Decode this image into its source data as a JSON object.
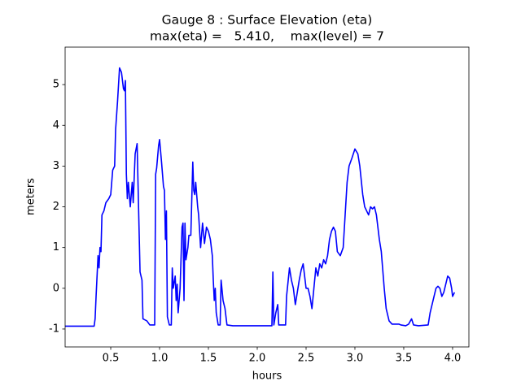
{
  "chart_data": {
    "type": "line",
    "title": "Gauge 8 : Surface Elevation (eta)",
    "subtitle": "max(eta) =   5.410,    max(level) = 7",
    "xlabel": "hours",
    "ylabel": "meters",
    "color": "#0000ff",
    "xlim": [
      0.033,
      4.167
    ],
    "ylim": [
      -1.44,
      5.92
    ],
    "xticks": [
      0.5,
      {
        "value": 1,
        "label": "1.0"
      },
      1.5,
      {
        "value": 2,
        "label": "2.0"
      },
      2.5,
      {
        "value": 3,
        "label": "3.0"
      },
      3.5,
      {
        "value": 4,
        "label": "4.0"
      }
    ],
    "yticks": [
      -1,
      0,
      1,
      2,
      3,
      4,
      5
    ],
    "grid": false,
    "x": [
      0.033,
      0.33,
      0.34,
      0.35,
      0.37,
      0.38,
      0.39,
      0.4,
      0.41,
      0.43,
      0.45,
      0.48,
      0.5,
      0.52,
      0.54,
      0.55,
      0.57,
      0.59,
      0.61,
      0.63,
      0.64,
      0.65,
      0.66,
      0.67,
      0.68,
      0.7,
      0.72,
      0.73,
      0.75,
      0.77,
      0.78,
      0.8,
      0.82,
      0.83,
      0.87,
      0.9,
      0.95,
      0.96,
      0.97,
      0.99,
      1.0,
      1.02,
      1.04,
      1.05,
      1.06,
      1.07,
      1.08,
      1.1,
      1.12,
      1.13,
      1.14,
      1.16,
      1.17,
      1.18,
      1.19,
      1.21,
      1.23,
      1.24,
      1.25,
      1.26,
      1.27,
      1.29,
      1.3,
      1.32,
      1.34,
      1.35,
      1.36,
      1.37,
      1.39,
      1.4,
      1.42,
      1.44,
      1.46,
      1.48,
      1.5,
      1.52,
      1.54,
      1.55,
      1.56,
      1.57,
      1.58,
      1.6,
      1.62,
      1.63,
      1.65,
      1.67,
      1.69,
      1.75,
      1.9,
      2.15,
      2.16,
      2.17,
      2.19,
      2.21,
      2.22,
      2.29,
      2.3,
      2.33,
      2.35,
      2.37,
      2.39,
      2.41,
      2.43,
      2.45,
      2.47,
      2.49,
      2.5,
      2.52,
      2.54,
      2.56,
      2.58,
      2.6,
      2.62,
      2.64,
      2.66,
      2.68,
      2.7,
      2.72,
      2.74,
      2.76,
      2.78,
      2.8,
      2.82,
      2.85,
      2.88,
      2.9,
      2.92,
      2.94,
      2.97,
      3.0,
      3.03,
      3.05,
      3.08,
      3.1,
      3.12,
      3.14,
      3.16,
      3.18,
      3.2,
      3.22,
      3.25,
      3.27,
      3.3,
      3.32,
      3.35,
      3.38,
      3.45,
      3.47,
      3.52,
      3.55,
      3.58,
      3.6,
      3.65,
      3.75,
      3.77,
      3.8,
      3.83,
      3.85,
      3.87,
      3.89,
      3.91,
      3.93,
      3.95,
      3.97,
      3.99,
      4.0,
      4.01,
      4.02
    ],
    "values": [
      -0.93,
      -0.93,
      -0.75,
      -0.2,
      0.8,
      0.5,
      1.0,
      0.9,
      1.8,
      1.9,
      2.1,
      2.2,
      2.3,
      2.9,
      3.0,
      3.9,
      4.6,
      5.41,
      5.3,
      4.9,
      4.85,
      5.1,
      2.8,
      2.2,
      2.6,
      2.0,
      2.6,
      2.1,
      3.3,
      3.55,
      2.5,
      0.4,
      0.2,
      -0.75,
      -0.8,
      -0.9,
      -0.9,
      2.8,
      2.95,
      3.5,
      3.65,
      3.1,
      2.5,
      2.4,
      1.2,
      1.9,
      -0.7,
      -0.9,
      -0.9,
      0.5,
      0.0,
      0.3,
      -0.3,
      0.1,
      -0.6,
      0.0,
      1.5,
      1.6,
      -0.3,
      1.6,
      0.7,
      1.0,
      1.3,
      1.3,
      3.1,
      2.4,
      2.3,
      2.6,
      2.0,
      1.8,
      1.0,
      1.6,
      1.1,
      1.5,
      1.4,
      1.2,
      0.8,
      0.2,
      -0.3,
      0.0,
      -0.6,
      -0.9,
      -0.9,
      0.2,
      -0.3,
      -0.5,
      -0.9,
      -0.92,
      -0.92,
      -0.92,
      0.4,
      -0.9,
      -0.6,
      -0.4,
      -0.9,
      -0.9,
      -0.2,
      0.5,
      0.2,
      0.0,
      -0.4,
      -0.1,
      0.2,
      0.45,
      0.6,
      0.2,
      0.0,
      0.0,
      -0.2,
      -0.5,
      0.0,
      0.5,
      0.3,
      0.6,
      0.5,
      0.7,
      0.6,
      0.8,
      1.2,
      1.4,
      1.5,
      1.4,
      0.9,
      0.8,
      1.0,
      1.8,
      2.6,
      3.0,
      3.2,
      3.42,
      3.3,
      3.0,
      2.3,
      2.0,
      1.9,
      1.8,
      2.0,
      1.95,
      2.0,
      1.8,
      1.2,
      0.9,
      0.0,
      -0.5,
      -0.8,
      -0.88,
      -0.88,
      -0.9,
      -0.92,
      -0.88,
      -0.75,
      -0.9,
      -0.92,
      -0.9,
      -0.6,
      -0.3,
      0.0,
      0.05,
      0.0,
      -0.2,
      -0.1,
      0.1,
      0.3,
      0.25,
      0.0,
      -0.2,
      -0.15,
      -0.1
    ]
  }
}
